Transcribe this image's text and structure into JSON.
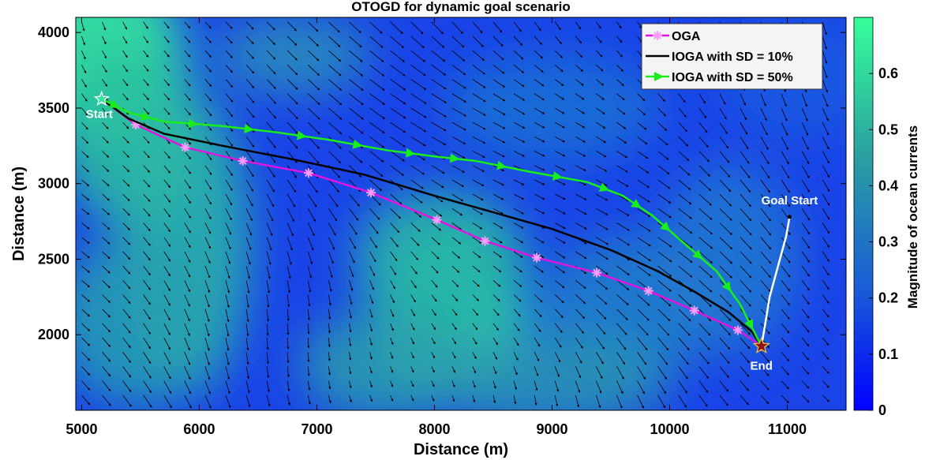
{
  "chart_data": {
    "type": "line",
    "title": "OTOGD for dynamic goal scenario",
    "xlabel": "Distance (m)",
    "ylabel": "Distance (m)",
    "xlim": [
      4950,
      11500
    ],
    "ylim": [
      1500,
      4100
    ],
    "xticks": [
      5000,
      6000,
      7000,
      8000,
      9000,
      10000,
      11000
    ],
    "yticks": [
      2000,
      2500,
      3000,
      3500,
      4000
    ],
    "colorbar": {
      "label": "Magnitude of ocean currents",
      "range": [
        0,
        0.7
      ],
      "ticks": [
        0,
        0.1,
        0.2,
        0.3,
        0.4,
        0.5,
        0.6
      ],
      "tick_labels": [
        "0",
        "0.1",
        "0.2",
        "0.3",
        "0.4",
        "0.5",
        "0.6"
      ],
      "colors": [
        "#0000ff",
        "#1a5ad8",
        "#2aa0a0",
        "#36ff9a"
      ]
    },
    "legend_position": "top-right",
    "series": [
      {
        "name": "OGA",
        "color": "#e015e0",
        "marker": "asterisk",
        "x": [
          5170,
          5460,
          5880,
          6370,
          6930,
          7460,
          8020,
          8430,
          8870,
          9380,
          9820,
          10210,
          10580,
          10780
        ],
        "y": [
          3560,
          3390,
          3240,
          3150,
          3070,
          2940,
          2760,
          2620,
          2510,
          2410,
          2290,
          2160,
          2030,
          1925
        ]
      },
      {
        "name": "IOGA with SD = 10%",
        "color": "#000000",
        "marker": "none",
        "x": [
          5170,
          5400,
          5700,
          6200,
          6800,
          7400,
          8000,
          8500,
          9000,
          9500,
          9900,
          10200,
          10500,
          10700,
          10780
        ],
        "y": [
          3560,
          3430,
          3330,
          3250,
          3160,
          3060,
          2920,
          2810,
          2700,
          2560,
          2420,
          2290,
          2150,
          2020,
          1925
        ]
      },
      {
        "name": "IOGA with SD = 50%",
        "color": "#1aee1a",
        "marker": "arrow",
        "x": [
          5170,
          5400,
          5700,
          6200,
          6650,
          7100,
          7600,
          8000,
          8350,
          8800,
          9300,
          9600,
          9850,
          10100,
          10400,
          10600,
          10780
        ],
        "y": [
          3560,
          3470,
          3410,
          3380,
          3340,
          3290,
          3220,
          3180,
          3150,
          3080,
          3010,
          2920,
          2790,
          2620,
          2420,
          2200,
          1925
        ]
      }
    ],
    "goal_path": {
      "color": "#ffffff",
      "x": [
        11020,
        10990,
        10920,
        10850,
        10810,
        10780
      ],
      "y": [
        2780,
        2650,
        2450,
        2250,
        2060,
        1925
      ]
    },
    "annotations": [
      {
        "text": "Start",
        "x": 5170,
        "y": 3560
      },
      {
        "text": "Goal Start",
        "x": 11020,
        "y": 2780
      },
      {
        "text": "End",
        "x": 10780,
        "y": 1925
      }
    ]
  }
}
